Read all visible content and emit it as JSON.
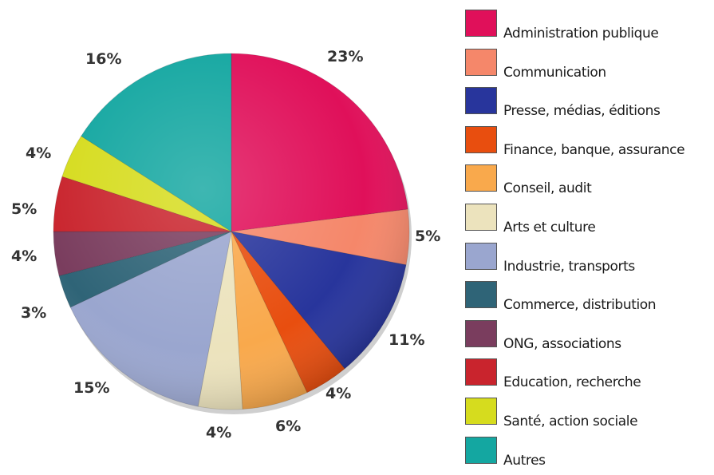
{
  "chart_data": {
    "type": "pie",
    "start_angle": "12 o'clock",
    "direction": "clockwise",
    "slices": [
      {
        "label": "Administration publique",
        "value": 23,
        "display": "23%",
        "color": "#e0105a"
      },
      {
        "label": "Communication",
        "value": 5,
        "display": "5%",
        "color": "#f5876a"
      },
      {
        "label": "Presse, médias, éditions",
        "value": 11,
        "display": "11%",
        "color": "#28359c"
      },
      {
        "label": "Finance, banque, assurance",
        "value": 4,
        "display": "4%",
        "color": "#e84e0f"
      },
      {
        "label": "Conseil, audit",
        "value": 6,
        "display": "6%",
        "color": "#f9a94c"
      },
      {
        "label": "Arts et culture",
        "value": 4,
        "display": "4%",
        "color": "#ece3bd"
      },
      {
        "label": "Industrie,  transports",
        "value": 15,
        "display": "15%",
        "color": "#9aa6cf"
      },
      {
        "label": "Commerce, distribution",
        "value": 3,
        "display": "3%",
        "color": "#2f6477"
      },
      {
        "label": "ONG, associations",
        "value": 4,
        "display": "4%",
        "color": "#7a3d5e"
      },
      {
        "label": "Education, recherche",
        "value": 5,
        "display": "5%",
        "color": "#c9242d"
      },
      {
        "label": "Santé,  action sociale",
        "value": 4,
        "display": "4%",
        "color": "#d6dc1e"
      },
      {
        "label": "Autres",
        "value": 16,
        "display": "16%",
        "color": "#14a7a1"
      }
    ],
    "legend_position": "right"
  }
}
